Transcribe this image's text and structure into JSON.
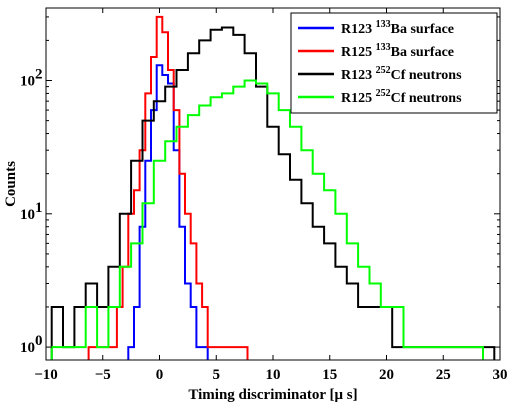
{
  "chart_data": {
    "type": "line",
    "step": true,
    "xlabel": "Timing discriminator [μ s]",
    "ylabel": "Counts",
    "xlim": [
      -10,
      30
    ],
    "ylim": [
      0.8,
      350
    ],
    "yscale": "log",
    "x_ticks": [
      -10,
      -5,
      0,
      5,
      10,
      15,
      20,
      25,
      30
    ],
    "x_tick_labels": [
      "−10",
      "−5",
      "0",
      "5",
      "10",
      "15",
      "20",
      "25",
      "30"
    ],
    "y_ticks": [
      {
        "base": "10",
        "exp": "0",
        "value": 1
      },
      {
        "base": "10",
        "exp": "1",
        "value": 10
      },
      {
        "base": "10",
        "exp": "2",
        "value": 100
      }
    ],
    "legend_position": "top-right",
    "series": [
      {
        "name": "R123 ¹³³Ba surface",
        "legend_main": "R123 ",
        "legend_sup": "133",
        "legend_rest": "Ba surface",
        "color": "#0000ff",
        "x": [
          -2.5,
          -2.0,
          -1.5,
          -1.0,
          -0.5,
          0.0,
          0.5,
          1.0,
          1.5,
          2.0,
          2.5,
          3.0,
          3.5,
          4.0
        ],
        "values": [
          1,
          2,
          8,
          25,
          60,
          130,
          110,
          95,
          30,
          8,
          3,
          2,
          1,
          1
        ]
      },
      {
        "name": "R125 ¹³³Ba surface",
        "legend_main": "R125 ",
        "legend_sup": "133",
        "legend_rest": "Ba surface",
        "color": "#ff0000",
        "x": [
          -6.0,
          -5.5,
          -5.0,
          -4.5,
          -4.0,
          -3.5,
          -3.0,
          -2.5,
          -2.0,
          -1.5,
          -1.0,
          -0.5,
          0.0,
          0.5,
          1.0,
          1.5,
          2.0,
          2.5,
          3.0,
          3.5,
          4.0,
          4.5,
          5.0,
          5.5,
          6.0,
          6.5,
          7.0,
          7.5
        ],
        "values": [
          1,
          1,
          1,
          1,
          1,
          2,
          4,
          10,
          15,
          30,
          80,
          150,
          300,
          230,
          120,
          60,
          20,
          10,
          6,
          3,
          2,
          1,
          1,
          1,
          1,
          1,
          1,
          1
        ]
      },
      {
        "name": "R123 ²⁵²Cf neutrons",
        "legend_main": "R123 ",
        "legend_sup": "252",
        "legend_rest": "Cf neutrons",
        "color": "#000000",
        "x": [
          -9.0,
          -8.0,
          -7.0,
          -6.0,
          -5.0,
          -4.0,
          -3.0,
          -2.0,
          -1.0,
          0.0,
          1.0,
          2.0,
          3.0,
          4.0,
          5.0,
          6.0,
          7.0,
          8.0,
          9.0,
          10.0,
          11.0,
          12.0,
          13.0,
          14.0,
          15.0,
          16.0,
          17.0,
          18.0,
          19.0,
          20.0,
          21.0,
          22.0,
          23.0,
          24.0,
          25.0,
          26.0,
          27.0,
          28.0,
          29.0
        ],
        "values": [
          2,
          1,
          2,
          3,
          2,
          4,
          10,
          25,
          50,
          70,
          90,
          120,
          160,
          200,
          240,
          250,
          220,
          160,
          90,
          45,
          28,
          18,
          12,
          8,
          6,
          4,
          3,
          2,
          2,
          2,
          1,
          1,
          1,
          1,
          1,
          1,
          1,
          1,
          1
        ]
      },
      {
        "name": "R125 ²⁵²Cf neutrons",
        "legend_main": "R125 ",
        "legend_sup": "252",
        "legend_rest": "Cf neutrons",
        "color": "#00ff00",
        "x": [
          -9.0,
          -8.0,
          -7.0,
          -6.0,
          -5.0,
          -4.0,
          -3.0,
          -2.0,
          -1.0,
          0.0,
          1.0,
          2.0,
          3.0,
          4.0,
          5.0,
          6.0,
          7.0,
          8.0,
          9.0,
          10.0,
          11.0,
          12.0,
          13.0,
          14.0,
          15.0,
          16.0,
          17.0,
          18.0,
          19.0,
          20.0,
          21.0,
          22.0,
          23.0,
          24.0,
          25.0,
          26.0,
          27.0,
          28.0
        ],
        "values": [
          1,
          1,
          1,
          2,
          1,
          2,
          4,
          6,
          12,
          25,
          35,
          45,
          55,
          65,
          75,
          80,
          90,
          100,
          95,
          80,
          60,
          45,
          30,
          20,
          15,
          10,
          6,
          4,
          3,
          2,
          2,
          1,
          1,
          1,
          1,
          1,
          1,
          1
        ]
      }
    ]
  }
}
